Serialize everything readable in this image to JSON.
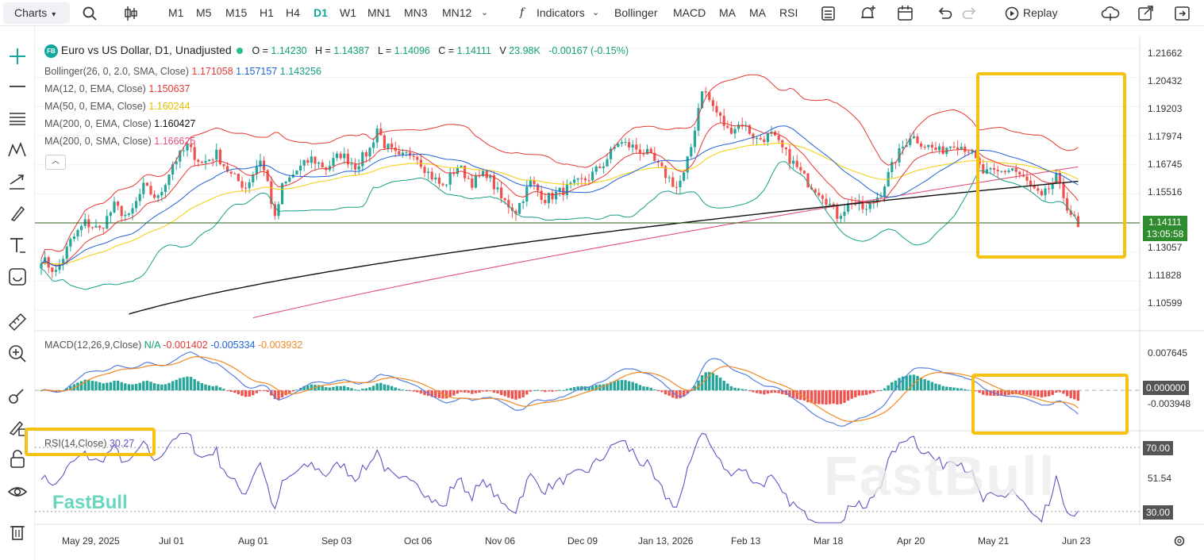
{
  "toolbar": {
    "charts_label": "Charts",
    "timeframes": [
      "M1",
      "M5",
      "M15",
      "H1",
      "H4",
      "D1",
      "W1",
      "MN1",
      "MN3",
      "MN12"
    ],
    "active_timeframe": "D1",
    "indicators_label": "Indicators",
    "quick_indicators": [
      "Bollinger",
      "MACD",
      "MA",
      "MA",
      "RSI"
    ],
    "replay_label": "Replay"
  },
  "legend": {
    "badge": "FB",
    "symbol": "Euro vs US Dollar, D1, Unadjusted",
    "o_label": "O =",
    "o": "1.14230",
    "h_label": "H =",
    "h": "1.14387",
    "l_label": "L =",
    "l": "1.14096",
    "c_label": "C =",
    "c": "1.14111",
    "v_label": "V",
    "v": "23.98K",
    "change": "-0.00167 (-0.15%)",
    "bollinger_label": "Bollinger(26, 0, 2.0, SMA, Close)",
    "bollinger_upper": "1.171058",
    "bollinger_mid": "1.157157",
    "bollinger_lower": "1.143256",
    "ma1_label": "MA(12, 0, EMA, Close)",
    "ma1_value": "1.150637",
    "ma2_label": "MA(50, 0, EMA, Close)",
    "ma2_value": "1.160244",
    "ma3_label": "MA(200, 0, EMA, Close)",
    "ma3_value": "1.160427",
    "ma4_label": "MA(200, 0, SMA, Close)",
    "ma4_value": "1.166625",
    "macd_label": "MACD(12,26,9,Close)",
    "macd_na": "N/A",
    "macd_hist": "-0.001402",
    "macd_line": "-0.005334",
    "macd_signal": "-0.003932",
    "rsi_label": "RSI(14,Close)",
    "rsi_value": "30.27"
  },
  "price_tag": {
    "price": "1.14111",
    "countdown": "13:05:58"
  },
  "watermark": {
    "left": "FastBull",
    "right": "FastBull"
  },
  "colors": {
    "up": "#26a69a",
    "down": "#ef5350",
    "bb_upper": "#e53935",
    "bb_mid": "#1e63d6",
    "bb_lower": "#16a085",
    "ema12": "#e53935",
    "ema50": "#f2d21b",
    "ema200": "#111111",
    "sma200": "#e0507a",
    "macd": "#5b7fe0",
    "signal": "#f08a24",
    "rsi": "#6a4fc0",
    "highlight": "#f5c211"
  },
  "chart_data": [
    {
      "type": "candlestick",
      "title": "Euro vs US Dollar, D1, Unadjusted",
      "y_ticks": [
        "1.21662",
        "1.20432",
        "1.19203",
        "1.17974",
        "1.16745",
        "1.15516",
        "1.13057",
        "1.11828",
        "1.10599"
      ],
      "ylim": [
        1.098,
        1.222
      ],
      "x_ticks": [
        "May 29, 2025",
        "Jul 01",
        "Aug 01",
        "Sep 03",
        "Oct 06",
        "Nov 06",
        "Dec 09",
        "Jan 13, 2026",
        "Feb 13",
        "Mar 18",
        "Apr 20",
        "May 21",
        "Jun 23"
      ],
      "close_path": [
        [
          0,
          1.128
        ],
        [
          4,
          1.122
        ],
        [
          8,
          1.135
        ],
        [
          12,
          1.143
        ],
        [
          16,
          1.14
        ],
        [
          20,
          1.15
        ],
        [
          24,
          1.145
        ],
        [
          28,
          1.158
        ],
        [
          32,
          1.153
        ],
        [
          36,
          1.168
        ],
        [
          40,
          1.175
        ],
        [
          44,
          1.168
        ],
        [
          48,
          1.172
        ],
        [
          52,
          1.163
        ],
        [
          56,
          1.158
        ],
        [
          60,
          1.17
        ],
        [
          62,
          1.16
        ],
        [
          64,
          1.144
        ],
        [
          66,
          1.158
        ],
        [
          70,
          1.165
        ],
        [
          74,
          1.17
        ],
        [
          78,
          1.166
        ],
        [
          82,
          1.172
        ],
        [
          86,
          1.167
        ],
        [
          90,
          1.174
        ],
        [
          92,
          1.183
        ],
        [
          94,
          1.176
        ],
        [
          98,
          1.17
        ],
        [
          102,
          1.173
        ],
        [
          106,
          1.164
        ],
        [
          110,
          1.158
        ],
        [
          114,
          1.167
        ],
        [
          118,
          1.16
        ],
        [
          122,
          1.164
        ],
        [
          126,
          1.153
        ],
        [
          130,
          1.148
        ],
        [
          134,
          1.16
        ],
        [
          138,
          1.153
        ],
        [
          142,
          1.156
        ],
        [
          146,
          1.159
        ],
        [
          150,
          1.162
        ],
        [
          154,
          1.168
        ],
        [
          158,
          1.177
        ],
        [
          162,
          1.175
        ],
        [
          166,
          1.172
        ],
        [
          170,
          1.165
        ],
        [
          174,
          1.158
        ],
        [
          176,
          1.163
        ],
        [
          178,
          1.175
        ],
        [
          181,
          1.2
        ],
        [
          184,
          1.192
        ],
        [
          188,
          1.182
        ],
        [
          192,
          1.185
        ],
        [
          196,
          1.178
        ],
        [
          200,
          1.18
        ],
        [
          204,
          1.172
        ],
        [
          206,
          1.168
        ],
        [
          210,
          1.16
        ],
        [
          214,
          1.155
        ],
        [
          218,
          1.146
        ],
        [
          222,
          1.152
        ],
        [
          226,
          1.148
        ],
        [
          230,
          1.156
        ],
        [
          234,
          1.17
        ],
        [
          238,
          1.18
        ],
        [
          242,
          1.176
        ],
        [
          246,
          1.173
        ],
        [
          250,
          1.177
        ],
        [
          254,
          1.174
        ],
        [
          258,
          1.164
        ],
        [
          262,
          1.164
        ],
        [
          266,
          1.166
        ],
        [
          270,
          1.16
        ],
        [
          274,
          1.153
        ],
        [
          278,
          1.162
        ],
        [
          281,
          1.15
        ],
        [
          284,
          1.141
        ]
      ],
      "last_price": 1.14111,
      "horizontal_line": 1.14111
    },
    {
      "type": "line",
      "name": "MACD(12,26,9,Close)",
      "y_ticks": [
        "0.007645",
        "0.000000",
        "-0.003948"
      ],
      "ylim": [
        -0.0085,
        0.0098
      ],
      "current": {
        "histogram": -0.001402,
        "macd": -0.005334,
        "signal": -0.003932
      }
    },
    {
      "type": "line",
      "name": "RSI(14,Close)",
      "y_ticks": [
        "70.00",
        "51.54",
        "30.00"
      ],
      "levels": [
        70,
        30
      ],
      "ylim": [
        23,
        79
      ],
      "current": 30.27
    }
  ]
}
